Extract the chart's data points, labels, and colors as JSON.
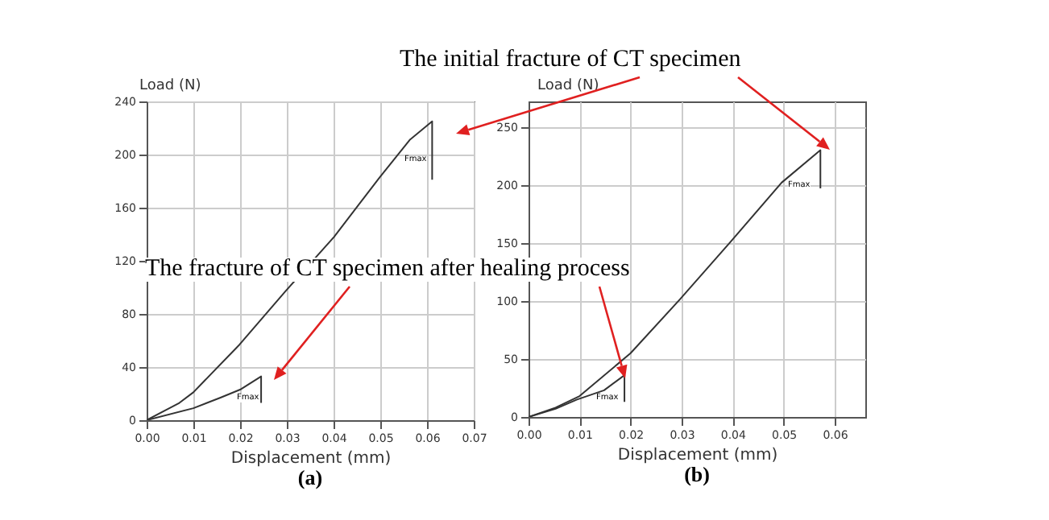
{
  "chart_data": [
    {
      "type": "line",
      "xlabel": "Displacement (mm)",
      "ylabel": "Load (N)",
      "xlim": [
        0,
        0.07
      ],
      "ylim": [
        0,
        240
      ],
      "xticks": [
        {
          "value": 0,
          "label": "0.00"
        },
        {
          "value": 0.01,
          "label": "0.01"
        },
        {
          "value": 0.02,
          "label": "0.02"
        },
        {
          "value": 0.03,
          "label": "0.03"
        },
        {
          "value": 0.04,
          "label": "0.04"
        },
        {
          "value": 0.05,
          "label": "0.05"
        },
        {
          "value": 0.06,
          "label": "0.06"
        },
        {
          "value": 0.07,
          "label": "0.07"
        }
      ],
      "yticks": [
        0,
        40,
        80,
        120,
        160,
        200,
        240
      ],
      "grid": true,
      "series": [
        {
          "color": "#333333",
          "x": [
            0,
            0.007,
            0.01,
            0.0199,
            0.0297,
            0.0401,
            0.0499,
            0.0563,
            0.0611,
            0.0611
          ],
          "values": [
            0,
            13,
            21,
            57,
            97,
            138,
            183,
            211,
            225,
            181
          ]
        },
        {
          "color": "#333333",
          "x": [
            0,
            0.01,
            0.0158,
            0.02,
            0.0245,
            0.0245
          ],
          "values": [
            0,
            9,
            17,
            23,
            33,
            13
          ]
        }
      ],
      "annotations": [
        "(a)",
        "Fmax",
        "Fmax",
        "The initial fracture of CT specimen",
        "The fracture of CT specimen after healing process"
      ]
    },
    {
      "type": "line",
      "xlabel": "Displacement (mm)",
      "ylabel": "Load (N)",
      "xlim": [
        0,
        0.066
      ],
      "ylim": [
        0,
        272
      ],
      "xticks": [
        {
          "value": 0,
          "label": "0.00"
        },
        {
          "value": 0.01,
          "label": "0.01"
        },
        {
          "value": 0.02,
          "label": "0.02"
        },
        {
          "value": 0.03,
          "label": "0.03"
        },
        {
          "value": 0.04,
          "label": "0.04"
        },
        {
          "value": 0.05,
          "label": "0.05"
        },
        {
          "value": 0.06,
          "label": "0.06"
        }
      ],
      "yticks": [
        0,
        50,
        100,
        150,
        200,
        250
      ],
      "grid": true,
      "series": [
        {
          "color": "#333333",
          "x": [
            0,
            0.0053,
            0.01,
            0.02,
            0.0296,
            0.0396,
            0.0496,
            0.0572,
            0.0572
          ],
          "values": [
            0,
            8,
            18,
            55,
            101,
            151,
            202,
            230,
            197
          ]
        },
        {
          "color": "#333333",
          "x": [
            0,
            0.0053,
            0.0095,
            0.0148,
            0.0188,
            0.0188
          ],
          "values": [
            0,
            7,
            15,
            23,
            36,
            13
          ]
        }
      ],
      "annotations": [
        "(b)",
        "Fmax",
        "Fmax"
      ]
    }
  ]
}
